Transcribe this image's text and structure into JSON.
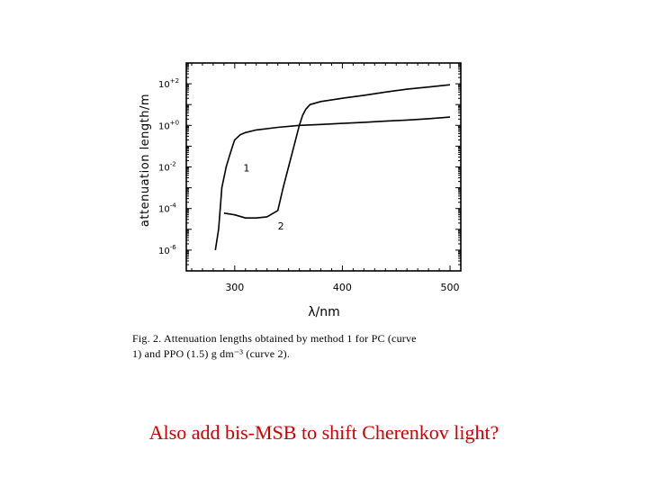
{
  "chart_data": {
    "type": "line",
    "xlabel": "λ/nm",
    "ylabel": "attenuation length/m",
    "x_scale": "linear",
    "y_scale": "log",
    "xlim": [
      255,
      510
    ],
    "ylim": [
      1e-07,
      1000.0
    ],
    "x_ticks": [
      300,
      400,
      500
    ],
    "x_tick_labels": [
      "300",
      "400",
      "500"
    ],
    "y_ticks": [
      100.0,
      1.0,
      0.01,
      0.0001,
      1e-06
    ],
    "y_tick_labels": [
      {
        "base": "10",
        "exp": "+2"
      },
      {
        "base": "10",
        "exp": "+0"
      },
      {
        "base": "10",
        "exp": "-2"
      },
      {
        "base": "10",
        "exp": "-4"
      },
      {
        "base": "10",
        "exp": "-6"
      }
    ],
    "grid": false,
    "series": [
      {
        "name": "1",
        "color": "#000000",
        "x": [
          282,
          285,
          288,
          292,
          295,
          298,
          300,
          305,
          310,
          320,
          340,
          360,
          380,
          400,
          420,
          440,
          460,
          480,
          500
        ],
        "y": [
          1e-06,
          1e-05,
          0.001,
          0.01,
          0.032,
          0.1,
          0.2,
          0.35,
          0.45,
          0.6,
          0.8,
          1.0,
          1.1,
          1.25,
          1.4,
          1.6,
          1.8,
          2.1,
          2.5
        ]
      },
      {
        "name": "2",
        "color": "#000000",
        "x": [
          290,
          300,
          310,
          320,
          330,
          340,
          345,
          350,
          355,
          360,
          363,
          366,
          370,
          380,
          400,
          420,
          440,
          460,
          480,
          500
        ],
        "y": [
          6e-05,
          5e-05,
          3.5e-05,
          3.5e-05,
          4e-05,
          8e-05,
          0.001,
          0.01,
          0.1,
          1,
          3,
          6,
          10,
          14,
          20,
          28,
          40,
          55,
          70,
          90
        ]
      }
    ],
    "annotations": [
      {
        "text": "1",
        "x": 308,
        "y": 0.006
      },
      {
        "text": "2",
        "x": 340,
        "y": 1e-05
      }
    ]
  },
  "caption": {
    "line1": "Fig. 2.  Attenuation lengths obtained by method 1 for PC (curve",
    "line2": "1) and PPO (1.5) g dm⁻³ (curve 2)."
  },
  "note": "Also add bis-MSB to shift Cherenkov light?"
}
